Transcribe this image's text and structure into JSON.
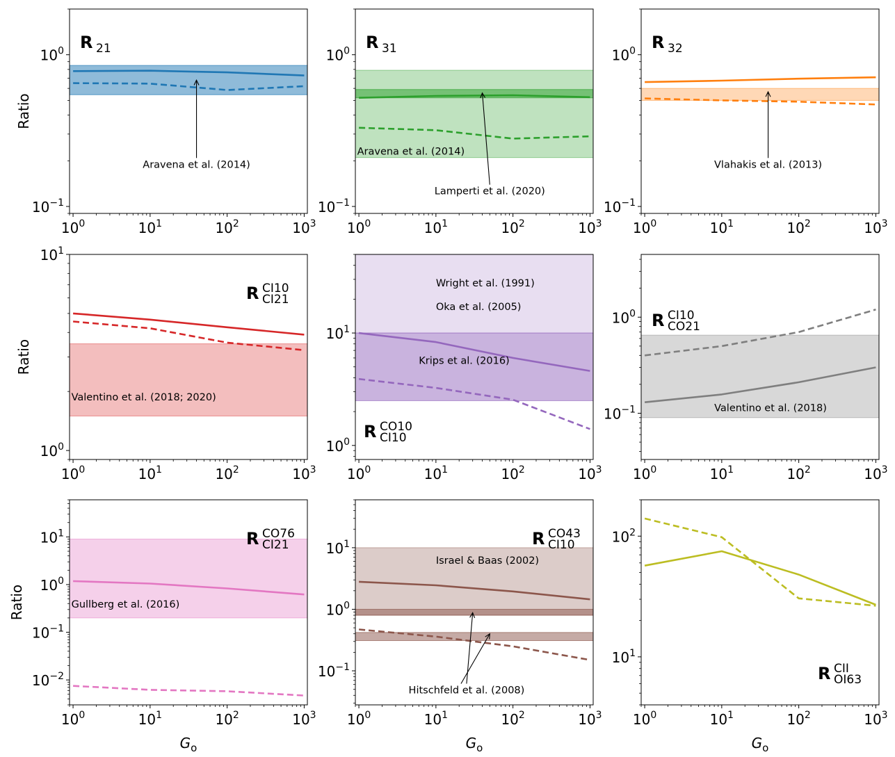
{
  "chart_data": [
    {
      "type": "line",
      "id": "R21",
      "title": "R",
      "title_sub": "21",
      "title_sup": "",
      "title_pos": "top-left",
      "ylabel": "Ratio",
      "xlabel": "",
      "xlim": [
        0.9,
        1100
      ],
      "ylim": [
        0.09,
        2.0
      ],
      "yscale": "log",
      "x_ticks": [
        1,
        10,
        100,
        1000
      ],
      "x_tick_labels": [
        "10^0",
        "10^1",
        "10^2",
        "10^3"
      ],
      "y_ticks": [
        0.1,
        1
      ],
      "y_tick_labels": [
        "10^-1",
        "10^0"
      ],
      "color": "#1f77b4",
      "x": [
        1,
        10,
        100,
        1000
      ],
      "series": [
        {
          "name": "solid",
          "style": "solid",
          "values": [
            0.78,
            0.785,
            0.765,
            0.73
          ]
        },
        {
          "name": "dashed",
          "style": "dashed",
          "values": [
            0.65,
            0.645,
            0.585,
            0.62
          ]
        }
      ],
      "bands": [
        {
          "y0": 0.545,
          "y1": 0.85,
          "alpha": 0.5
        }
      ],
      "annotations": [
        {
          "text": "Aravena et al. (2014)",
          "x": 40,
          "y": 0.18,
          "align": "center",
          "arrow_to": [
            40,
            0.68
          ]
        }
      ]
    },
    {
      "type": "line",
      "id": "R31",
      "title": "R",
      "title_sub": "31",
      "title_sup": "",
      "title_pos": "top-left",
      "ylabel": "",
      "xlabel": "",
      "xlim": [
        0.9,
        1100
      ],
      "ylim": [
        0.09,
        2.0
      ],
      "yscale": "log",
      "x_ticks": [
        1,
        10,
        100,
        1000
      ],
      "x_tick_labels": [
        "10^0",
        "10^1",
        "10^2",
        "10^3"
      ],
      "y_ticks": [
        0.1,
        1
      ],
      "y_tick_labels": [
        "10^-1",
        "10^0"
      ],
      "color": "#2ca02c",
      "x": [
        1,
        10,
        100,
        1000
      ],
      "series": [
        {
          "name": "solid",
          "style": "solid",
          "values": [
            0.52,
            0.535,
            0.54,
            0.525
          ]
        },
        {
          "name": "dashed",
          "style": "dashed",
          "values": [
            0.33,
            0.318,
            0.28,
            0.29
          ]
        }
      ],
      "bands": [
        {
          "y0": 0.21,
          "y1": 0.79,
          "alpha": 0.3
        },
        {
          "y0": 0.52,
          "y1": 0.59,
          "alpha": 0.5
        }
      ],
      "annotations": [
        {
          "text": "Aravena et al. (2014)",
          "x": 0.95,
          "y": 0.22,
          "align": "left"
        },
        {
          "text": "Lamperti et al. (2020)",
          "x": 50,
          "y": 0.12,
          "align": "center",
          "arrow_to": [
            40,
            0.56
          ]
        }
      ]
    },
    {
      "type": "line",
      "id": "R32",
      "title": "R",
      "title_sub": "32",
      "title_sup": "",
      "title_pos": "top-left",
      "ylabel": "",
      "xlabel": "",
      "xlim": [
        0.9,
        1100
      ],
      "ylim": [
        0.09,
        2.0
      ],
      "yscale": "log",
      "x_ticks": [
        1,
        10,
        100,
        1000
      ],
      "x_tick_labels": [
        "10^0",
        "10^1",
        "10^2",
        "10^3"
      ],
      "y_ticks": [
        0.1,
        1
      ],
      "y_tick_labels": [
        "10^-1",
        "10^0"
      ],
      "color": "#ff7f0e",
      "x": [
        1,
        10,
        100,
        1000
      ],
      "series": [
        {
          "name": "solid",
          "style": "solid",
          "values": [
            0.66,
            0.675,
            0.695,
            0.71
          ]
        },
        {
          "name": "dashed",
          "style": "dashed",
          "values": [
            0.515,
            0.5,
            0.49,
            0.47
          ]
        }
      ],
      "bands": [
        {
          "y0": 0.5,
          "y1": 0.6,
          "alpha": 0.3
        }
      ],
      "annotations": [
        {
          "text": "Vlahakis et al. (2013)",
          "x": 40,
          "y": 0.18,
          "align": "center",
          "arrow_to": [
            40,
            0.57
          ]
        }
      ]
    },
    {
      "type": "line",
      "id": "R_CI10_CI21",
      "title": "R",
      "title_sub": "CI21",
      "title_sup": "CI10",
      "title_pos": "top-right",
      "ylabel": "Ratio",
      "xlabel": "",
      "xlim": [
        0.9,
        1100
      ],
      "ylim": [
        0.9,
        10.0
      ],
      "yscale": "log",
      "x_ticks": [
        1,
        10,
        100,
        1000
      ],
      "x_tick_labels": [
        "10^0",
        "10^1",
        "10^2",
        "10^3"
      ],
      "y_ticks": [
        1,
        10
      ],
      "y_tick_labels": [
        "10^0",
        "10^1"
      ],
      "color": "#d62728",
      "x": [
        1,
        10,
        100,
        1000
      ],
      "series": [
        {
          "name": "solid",
          "style": "solid",
          "values": [
            5.0,
            4.65,
            4.25,
            3.9
          ]
        },
        {
          "name": "dashed",
          "style": "dashed",
          "values": [
            4.55,
            4.2,
            3.55,
            3.25
          ]
        }
      ],
      "bands": [
        {
          "y0": 1.5,
          "y1": 3.5,
          "alpha": 0.3
        }
      ],
      "annotations": [
        {
          "text": "Valentino et al. (2018; 2020)",
          "x": 0.95,
          "y": 1.8,
          "align": "left"
        }
      ]
    },
    {
      "type": "line",
      "id": "R_CO10_CI10",
      "title": "R",
      "title_sub": "CI10",
      "title_sup": "CO10",
      "title_pos": "bottom-left",
      "ylabel": "",
      "xlabel": "",
      "xlim": [
        0.9,
        1100
      ],
      "ylim": [
        0.75,
        50.0
      ],
      "yscale": "log",
      "x_ticks": [
        1,
        10,
        100,
        1000
      ],
      "x_tick_labels": [
        "10^0",
        "10^1",
        "10^2",
        "10^3"
      ],
      "y_ticks": [
        1,
        10
      ],
      "y_tick_labels": [
        "10^0",
        "10^1"
      ],
      "color": "#9467bd",
      "x": [
        1,
        10,
        100,
        1000
      ],
      "series": [
        {
          "name": "solid",
          "style": "solid",
          "values": [
            10.0,
            8.3,
            6.0,
            4.6
          ]
        },
        {
          "name": "dashed",
          "style": "dashed",
          "values": [
            3.9,
            3.25,
            2.55,
            1.4
          ]
        }
      ],
      "bands": [
        {
          "y0": 10.0,
          "y1": 50.0,
          "alpha": 0.22
        },
        {
          "y0": 2.5,
          "y1": 10.0,
          "alpha": 0.5
        }
      ],
      "annotations": [
        {
          "text": "Wright et al. (1991)",
          "x": 10,
          "y": 26,
          "align": "left"
        },
        {
          "text": "Oka et al. (2005)",
          "x": 10,
          "y": 16,
          "align": "left"
        },
        {
          "text": "Krips et al. (2016)",
          "x": 6,
          "y": 5.3,
          "align": "left"
        }
      ]
    },
    {
      "type": "line",
      "id": "R_CI10_CO21",
      "title": "R",
      "title_sub": "CO21",
      "title_sup": "CI10",
      "title_pos": "top-left",
      "ylabel": "",
      "xlabel": "",
      "xlim": [
        0.9,
        1100
      ],
      "ylim": [
        0.033,
        4.5
      ],
      "yscale": "log",
      "x_ticks": [
        1,
        10,
        100,
        1000
      ],
      "x_tick_labels": [
        "10^0",
        "10^1",
        "10^2",
        "10^3"
      ],
      "y_ticks": [
        0.1,
        1
      ],
      "y_tick_labels": [
        "10^-1",
        "10^0"
      ],
      "color": "#7f7f7f",
      "x": [
        1,
        10,
        100,
        1000
      ],
      "series": [
        {
          "name": "solid",
          "style": "solid",
          "values": [
            0.13,
            0.157,
            0.21,
            0.3
          ]
        },
        {
          "name": "dashed",
          "style": "dashed",
          "values": [
            0.4,
            0.5,
            0.7,
            1.2
          ]
        }
      ],
      "bands": [
        {
          "y0": 0.09,
          "y1": 0.65,
          "alpha": 0.3
        }
      ],
      "annotations": [
        {
          "text": "Valentino et al. (2018)",
          "x": 8,
          "y": 0.105,
          "align": "left"
        }
      ]
    },
    {
      "type": "line",
      "id": "R_CO76_CI21",
      "title": "R",
      "title_sub": "CI21",
      "title_sup": "CO76",
      "title_pos": "top-right",
      "ylabel": "Ratio",
      "xlabel": "G_o",
      "xlim": [
        0.9,
        1100
      ],
      "ylim": [
        0.003,
        60.0
      ],
      "yscale": "log",
      "x_ticks": [
        1,
        10,
        100,
        1000
      ],
      "x_tick_labels": [
        "10^0",
        "10^1",
        "10^2",
        "10^3"
      ],
      "y_ticks": [
        0.01,
        0.1,
        1,
        10
      ],
      "y_tick_labels": [
        "10^-2",
        "10^-1",
        "10^0",
        "10^1"
      ],
      "color": "#e377c2",
      "x": [
        1,
        10,
        100,
        1000
      ],
      "series": [
        {
          "name": "solid",
          "style": "solid",
          "values": [
            1.18,
            1.05,
            0.83,
            0.62
          ]
        },
        {
          "name": "dashed",
          "style": "dashed",
          "values": [
            0.0075,
            0.0062,
            0.0058,
            0.0047
          ]
        }
      ],
      "bands": [
        {
          "y0": 0.2,
          "y1": 9.0,
          "alpha": 0.35
        }
      ],
      "annotations": [
        {
          "text": "Gullberg et al. (2016)",
          "x": 0.95,
          "y": 0.33,
          "align": "left"
        }
      ]
    },
    {
      "type": "line",
      "id": "R_CO43_CI10",
      "title": "R",
      "title_sub": "CI10",
      "title_sup": "CO43",
      "title_pos": "top-right",
      "ylabel": "",
      "xlabel": "G_o",
      "xlim": [
        0.9,
        1100
      ],
      "ylim": [
        0.028,
        60.0
      ],
      "yscale": "log",
      "x_ticks": [
        1,
        10,
        100,
        1000
      ],
      "x_tick_labels": [
        "10^0",
        "10^1",
        "10^2",
        "10^3"
      ],
      "y_ticks": [
        0.1,
        1,
        10
      ],
      "y_tick_labels": [
        "10^-1",
        "10^0",
        "10^1"
      ],
      "color": "#8c564b",
      "x": [
        1,
        10,
        100,
        1000
      ],
      "series": [
        {
          "name": "solid",
          "style": "solid",
          "values": [
            2.8,
            2.45,
            1.95,
            1.45
          ]
        },
        {
          "name": "dashed",
          "style": "dashed",
          "values": [
            0.47,
            0.36,
            0.25,
            0.15
          ]
        }
      ],
      "bands": [
        {
          "y0": 0.8,
          "y1": 10.0,
          "alpha": 0.3
        },
        {
          "y0": 0.8,
          "y1": 1.0,
          "alpha": 0.5
        },
        {
          "y0": 0.31,
          "y1": 0.42,
          "alpha": 0.5
        }
      ],
      "annotations": [
        {
          "text": "Israel & Baas (2002)",
          "x": 10,
          "y": 5.5,
          "align": "left"
        },
        {
          "text": "Hitschfeld et al. (2008)",
          "x": 25,
          "y": 0.043,
          "align": "center",
          "arrow_to": [
            30,
            0.88
          ],
          "arrow2_to": [
            50,
            0.4
          ]
        }
      ]
    },
    {
      "type": "line",
      "id": "R_CII_OI63",
      "title": "R",
      "title_sub": "OI63",
      "title_sup": "CII",
      "title_pos": "bottom-right",
      "ylabel": "",
      "xlabel": "G_o",
      "xlim": [
        0.9,
        1100
      ],
      "ylim": [
        4.0,
        200.0
      ],
      "yscale": "log",
      "x_ticks": [
        1,
        10,
        100,
        1000
      ],
      "x_tick_labels": [
        "10^0",
        "10^1",
        "10^2",
        "10^3"
      ],
      "y_ticks": [
        10,
        100
      ],
      "y_tick_labels": [
        "10^1",
        "10^2"
      ],
      "color": "#bcbd22",
      "x": [
        1,
        10,
        100,
        1000
      ],
      "series": [
        {
          "name": "solid",
          "style": "solid",
          "values": [
            57,
            75,
            48,
            27
          ]
        },
        {
          "name": "dashed",
          "style": "dashed",
          "values": [
            140,
            98,
            30.5,
            26.5
          ]
        }
      ],
      "bands": [],
      "annotations": []
    }
  ]
}
